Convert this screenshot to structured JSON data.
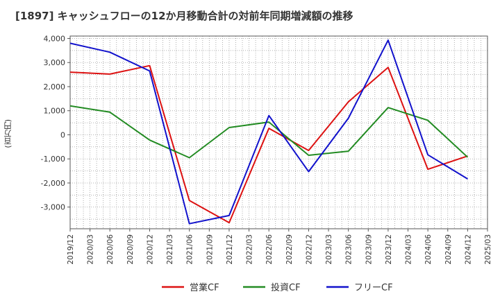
{
  "chart_data": {
    "type": "line",
    "title": "[1897]  キャッシュフローの12か月移動合計の対前年同期増減額の推移",
    "ylabel": "(百万円)",
    "xlabel": "",
    "ylim": [
      -3900,
      4100
    ],
    "yticks": [
      4000,
      3000,
      2000,
      1000,
      0,
      -1000,
      -2000,
      -3000
    ],
    "ytick_labels": [
      "4,000",
      "3,000",
      "2,000",
      "1,000",
      "0",
      "-1,000",
      "-2,000",
      "-3,000"
    ],
    "categories": [
      "2019/12",
      "2020/03",
      "2020/06",
      "2020/09",
      "2020/12",
      "2021/03",
      "2021/06",
      "2021/09",
      "2021/12",
      "2022/03",
      "2022/06",
      "2022/09",
      "2022/12",
      "2023/03",
      "2023/06",
      "2023/09",
      "2023/12",
      "2024/03",
      "2024/06",
      "2024/09",
      "2024/12",
      "2025/03"
    ],
    "grid": true,
    "legend_position": "bottom",
    "series": [
      {
        "name": "営業CF",
        "color": "#dd1111",
        "points": [
          [
            "2019/12",
            2600
          ],
          [
            "2020/06",
            2520
          ],
          [
            "2020/12",
            2870
          ],
          [
            "2021/06",
            -2730
          ],
          [
            "2021/12",
            -3650
          ],
          [
            "2022/06",
            270
          ],
          [
            "2022/12",
            -650
          ],
          [
            "2023/06",
            1370
          ],
          [
            "2023/12",
            2800
          ],
          [
            "2024/06",
            -1430
          ],
          [
            "2024/12",
            -880
          ]
        ]
      },
      {
        "name": "投資CF",
        "color": "#228b22",
        "points": [
          [
            "2019/12",
            1200
          ],
          [
            "2020/06",
            940
          ],
          [
            "2020/12",
            -220
          ],
          [
            "2021/06",
            -950
          ],
          [
            "2021/12",
            300
          ],
          [
            "2022/06",
            530
          ],
          [
            "2022/12",
            -850
          ],
          [
            "2023/06",
            -680
          ],
          [
            "2023/12",
            1130
          ],
          [
            "2024/06",
            600
          ],
          [
            "2024/12",
            -930
          ]
        ]
      },
      {
        "name": "フリーCF",
        "color": "#1111cc",
        "points": [
          [
            "2019/12",
            3800
          ],
          [
            "2020/06",
            3430
          ],
          [
            "2020/12",
            2650
          ],
          [
            "2021/06",
            -3690
          ],
          [
            "2021/12",
            -3350
          ],
          [
            "2022/06",
            800
          ],
          [
            "2022/12",
            -1530
          ],
          [
            "2023/06",
            690
          ],
          [
            "2023/12",
            3930
          ],
          [
            "2024/06",
            -830
          ],
          [
            "2024/12",
            -1830
          ]
        ]
      }
    ]
  }
}
